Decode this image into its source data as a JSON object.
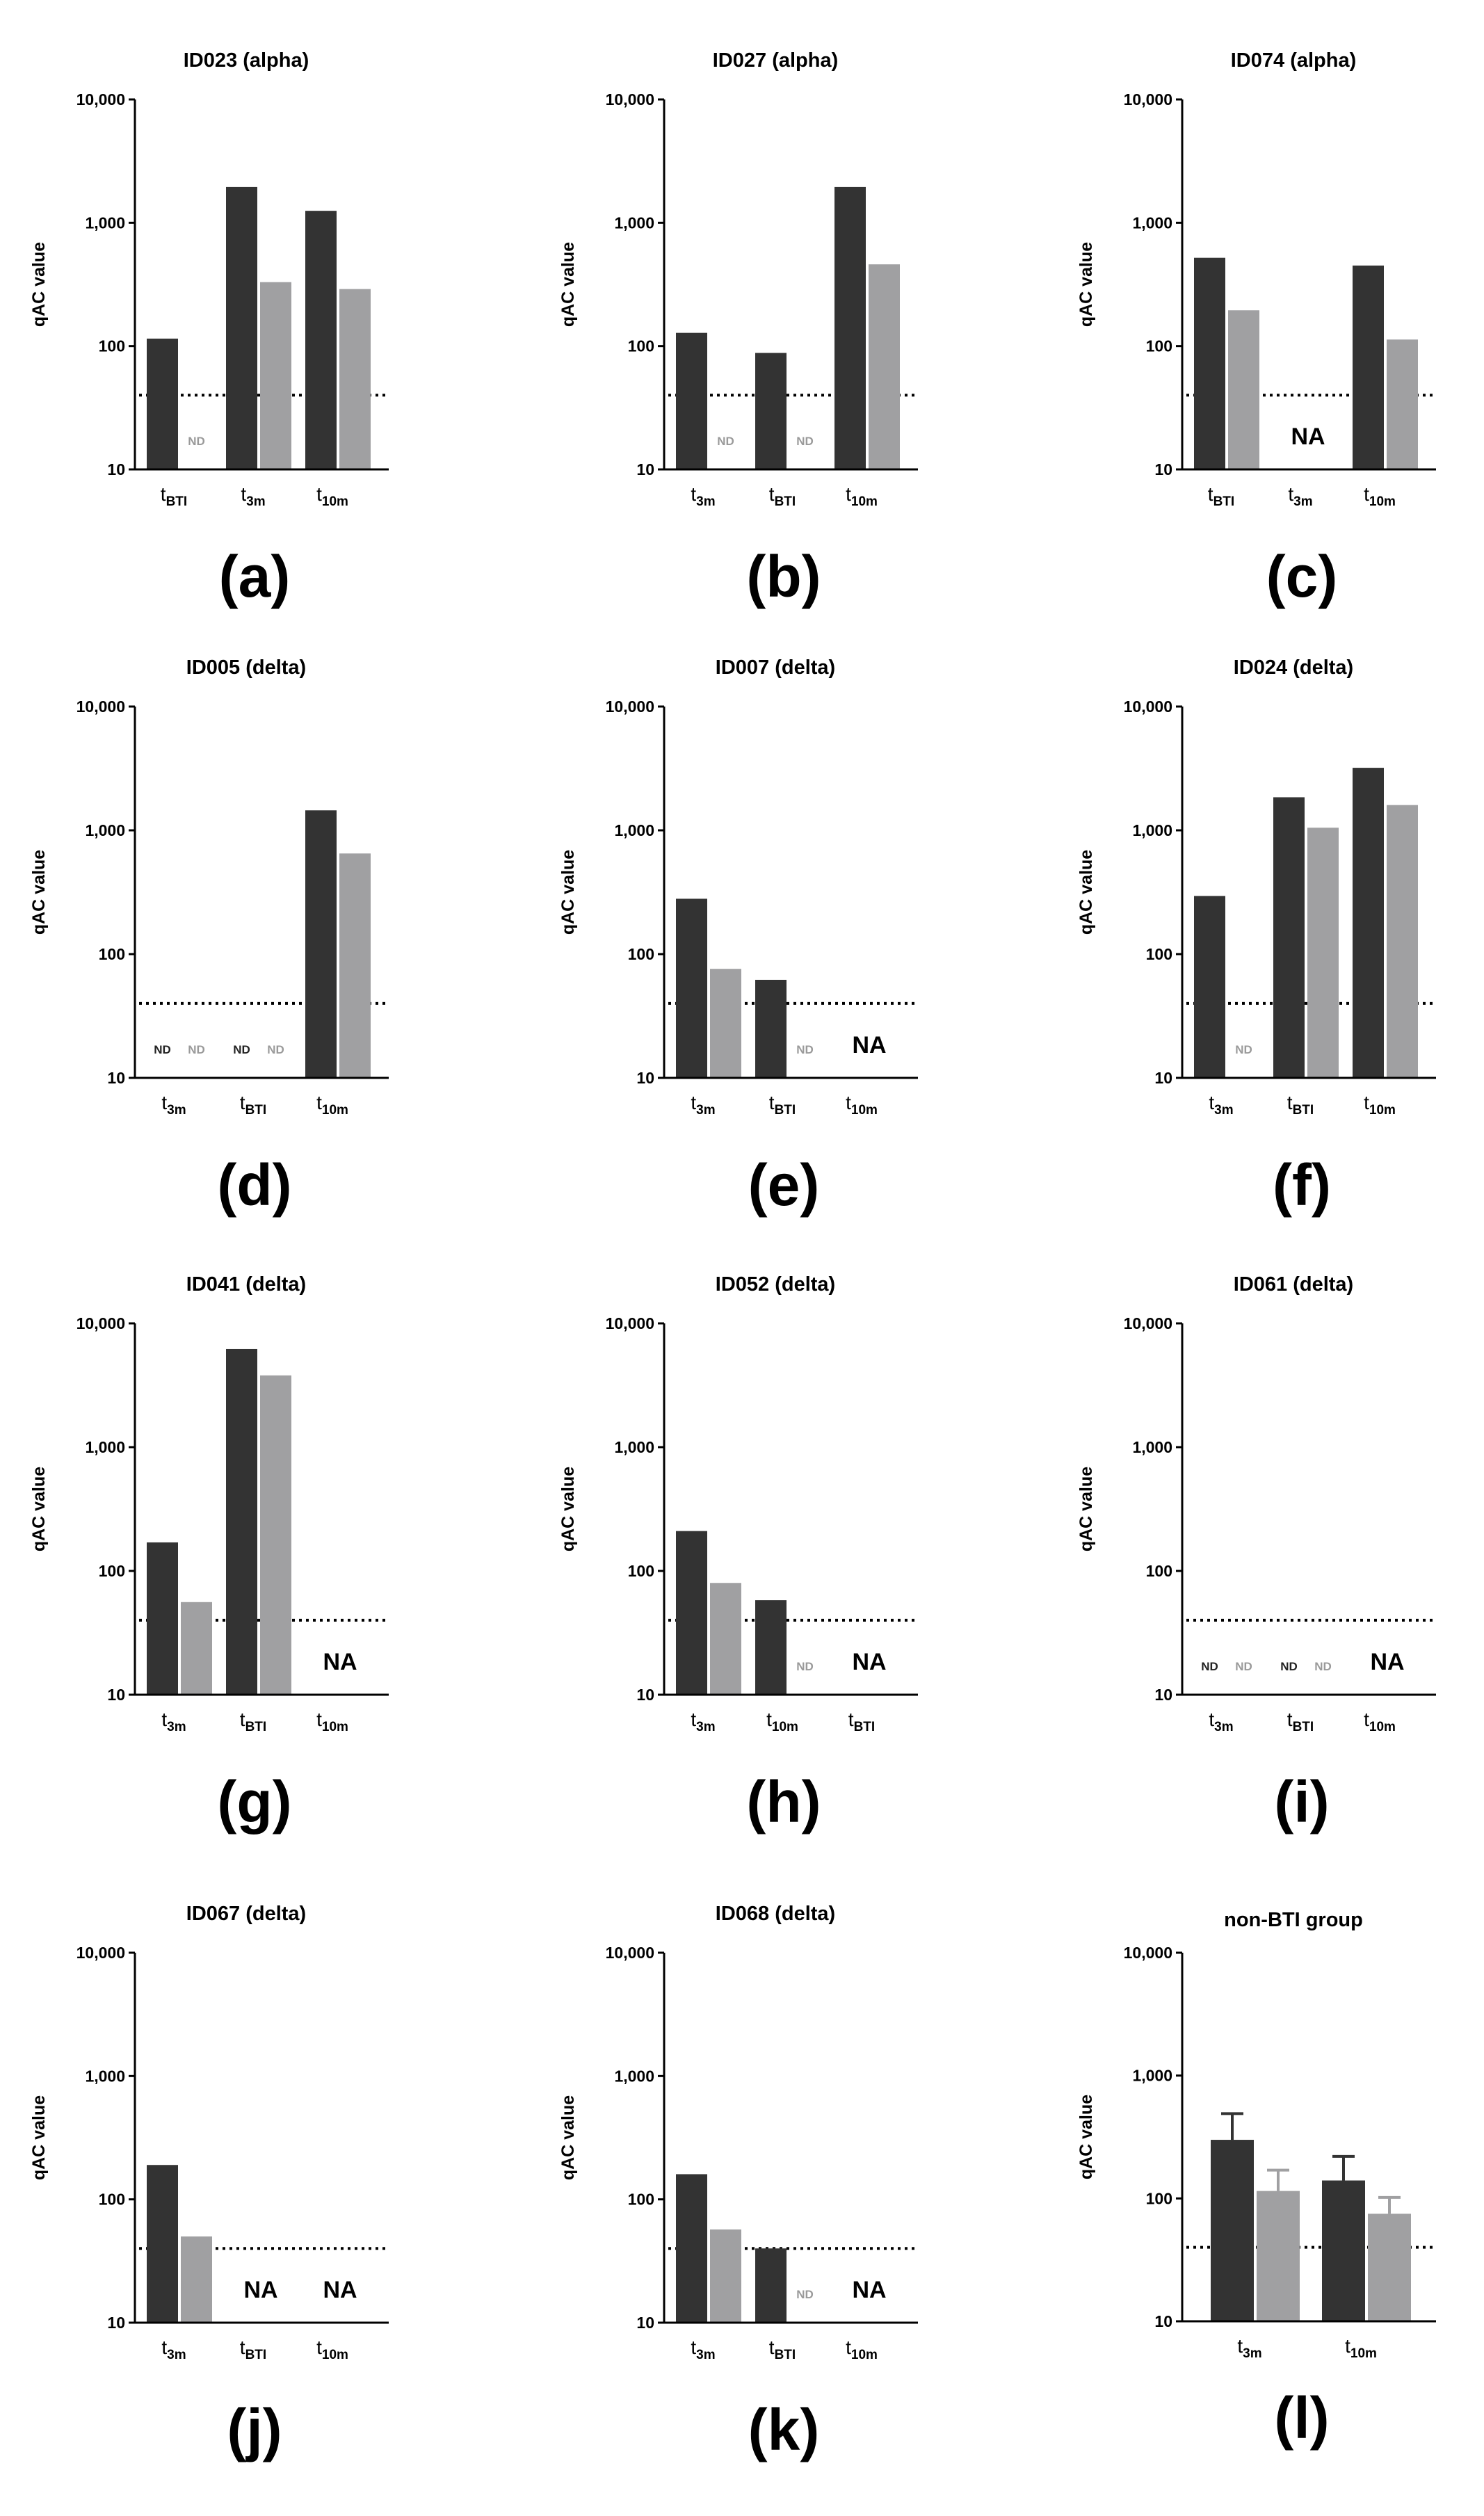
{
  "colors": {
    "dark": "#333333",
    "light": "#a0a0a2",
    "nd_dark": "#222222",
    "nd_light": "#9a9a9a",
    "axis": "#000000"
  },
  "y_axis_label": "qAC value",
  "y_ticks": [
    "10",
    "100",
    "1,000",
    "10,000"
  ],
  "nd_text": "ND",
  "chart_data": [
    {
      "id": "a",
      "type": "bar",
      "panel_label": "(a)",
      "title": "ID023 (alpha)",
      "yscale": "log",
      "ylim": [
        10,
        10000
      ],
      "threshold": 40,
      "categories": [
        {
          "base": "t",
          "sub": "BTI"
        },
        {
          "base": "t",
          "sub": "3m"
        },
        {
          "base": "t",
          "sub": "10m"
        }
      ],
      "series": [
        {
          "name": "dark",
          "values": [
            115,
            1950,
            1250
          ]
        },
        {
          "name": "light",
          "values": [
            null,
            330,
            290
          ]
        }
      ],
      "nd": [
        {
          "cat": 0,
          "series": "light"
        }
      ],
      "na": []
    },
    {
      "id": "b",
      "type": "bar",
      "panel_label": "(b)",
      "title": "ID027 (alpha)",
      "yscale": "log",
      "ylim": [
        10,
        10000
      ],
      "threshold": 40,
      "categories": [
        {
          "base": "t",
          "sub": "3m"
        },
        {
          "base": "t",
          "sub": "BTI"
        },
        {
          "base": "t",
          "sub": "10m"
        }
      ],
      "series": [
        {
          "name": "dark",
          "values": [
            128,
            88,
            1950
          ]
        },
        {
          "name": "light",
          "values": [
            null,
            null,
            460
          ]
        }
      ],
      "nd": [
        {
          "cat": 0,
          "series": "light"
        },
        {
          "cat": 1,
          "series": "light"
        }
      ],
      "na": []
    },
    {
      "id": "c",
      "type": "bar",
      "panel_label": "(c)",
      "title": "ID074 (alpha)",
      "yscale": "log",
      "ylim": [
        10,
        10000
      ],
      "threshold": 40,
      "categories": [
        {
          "base": "t",
          "sub": "BTI"
        },
        {
          "base": "t",
          "sub": "3m"
        },
        {
          "base": "t",
          "sub": "10m"
        }
      ],
      "series": [
        {
          "name": "dark",
          "values": [
            520,
            null,
            450
          ]
        },
        {
          "name": "light",
          "values": [
            195,
            null,
            113
          ]
        }
      ],
      "nd": [],
      "na": [
        {
          "cat": 1,
          "text": "NA"
        }
      ]
    },
    {
      "id": "d",
      "type": "bar",
      "panel_label": "(d)",
      "title": "ID005 (delta)",
      "yscale": "log",
      "ylim": [
        10,
        10000
      ],
      "threshold": 40,
      "categories": [
        {
          "base": "t",
          "sub": "3m"
        },
        {
          "base": "t",
          "sub": "BTI"
        },
        {
          "base": "t",
          "sub": "10m"
        }
      ],
      "series": [
        {
          "name": "dark",
          "values": [
            null,
            null,
            1450
          ]
        },
        {
          "name": "light",
          "values": [
            null,
            null,
            650
          ]
        }
      ],
      "nd": [
        {
          "cat": 0,
          "series": "dark"
        },
        {
          "cat": 0,
          "series": "light"
        },
        {
          "cat": 1,
          "series": "dark"
        },
        {
          "cat": 1,
          "series": "light"
        }
      ],
      "na": []
    },
    {
      "id": "e",
      "type": "bar",
      "panel_label": "(e)",
      "title": "ID007 (delta)",
      "yscale": "log",
      "ylim": [
        10,
        10000
      ],
      "threshold": 40,
      "categories": [
        {
          "base": "t",
          "sub": "3m"
        },
        {
          "base": "t",
          "sub": "BTI"
        },
        {
          "base": "t",
          "sub": "10m"
        }
      ],
      "series": [
        {
          "name": "dark",
          "values": [
            280,
            62,
            null
          ]
        },
        {
          "name": "light",
          "values": [
            76,
            null,
            null
          ]
        }
      ],
      "nd": [
        {
          "cat": 1,
          "series": "light"
        }
      ],
      "na": [
        {
          "cat": 2,
          "text": "NA"
        }
      ]
    },
    {
      "id": "f",
      "type": "bar",
      "panel_label": "(f)",
      "title": "ID024 (delta)",
      "yscale": "log",
      "ylim": [
        10,
        10000
      ],
      "threshold": 40,
      "categories": [
        {
          "base": "t",
          "sub": "3m"
        },
        {
          "base": "t",
          "sub": "BTI"
        },
        {
          "base": "t",
          "sub": "10m"
        }
      ],
      "series": [
        {
          "name": "dark",
          "values": [
            295,
            1850,
            3200
          ]
        },
        {
          "name": "light",
          "values": [
            null,
            1050,
            1600
          ]
        }
      ],
      "nd": [
        {
          "cat": 0,
          "series": "light"
        }
      ],
      "na": []
    },
    {
      "id": "g",
      "type": "bar",
      "panel_label": "(g)",
      "title": "ID041 (delta)",
      "yscale": "log",
      "ylim": [
        10,
        10000
      ],
      "threshold": 40,
      "categories": [
        {
          "base": "t",
          "sub": "3m"
        },
        {
          "base": "t",
          "sub": "BTI"
        },
        {
          "base": "t",
          "sub": "10m"
        }
      ],
      "series": [
        {
          "name": "dark",
          "values": [
            170,
            6200,
            null
          ]
        },
        {
          "name": "light",
          "values": [
            56,
            3800,
            null
          ]
        }
      ],
      "nd": [],
      "na": [
        {
          "cat": 2,
          "text": "NA"
        }
      ]
    },
    {
      "id": "h",
      "type": "bar",
      "panel_label": "(h)",
      "title": "ID052 (delta)",
      "yscale": "log",
      "ylim": [
        10,
        10000
      ],
      "threshold": 40,
      "categories": [
        {
          "base": "t",
          "sub": "3m"
        },
        {
          "base": "t",
          "sub": "10m"
        },
        {
          "base": "t",
          "sub": "BTI"
        }
      ],
      "series": [
        {
          "name": "dark",
          "values": [
            210,
            58,
            null
          ]
        },
        {
          "name": "light",
          "values": [
            80,
            null,
            null
          ]
        }
      ],
      "nd": [
        {
          "cat": 1,
          "series": "light"
        }
      ],
      "na": [
        {
          "cat": 2,
          "text": "NA"
        }
      ]
    },
    {
      "id": "i",
      "type": "bar",
      "panel_label": "(i)",
      "title": "ID061 (delta)",
      "yscale": "log",
      "ylim": [
        10,
        10000
      ],
      "threshold": 40,
      "categories": [
        {
          "base": "t",
          "sub": "3m"
        },
        {
          "base": "t",
          "sub": "BTI"
        },
        {
          "base": "t",
          "sub": "10m"
        }
      ],
      "series": [
        {
          "name": "dark",
          "values": [
            null,
            null,
            null
          ]
        },
        {
          "name": "light",
          "values": [
            null,
            null,
            null
          ]
        }
      ],
      "nd": [
        {
          "cat": 0,
          "series": "dark"
        },
        {
          "cat": 0,
          "series": "light"
        },
        {
          "cat": 1,
          "series": "dark"
        },
        {
          "cat": 1,
          "series": "light"
        }
      ],
      "na": [
        {
          "cat": 2,
          "text": "NA"
        }
      ]
    },
    {
      "id": "j",
      "type": "bar",
      "panel_label": "(j)",
      "title": "ID067 (delta)",
      "yscale": "log",
      "ylim": [
        10,
        10000
      ],
      "threshold": 40,
      "categories": [
        {
          "base": "t",
          "sub": "3m"
        },
        {
          "base": "t",
          "sub": "BTI"
        },
        {
          "base": "t",
          "sub": "10m"
        }
      ],
      "series": [
        {
          "name": "dark",
          "values": [
            190,
            null,
            null
          ]
        },
        {
          "name": "light",
          "values": [
            50,
            null,
            null
          ]
        }
      ],
      "nd": [],
      "na": [
        {
          "cat": 1,
          "text": "NA"
        },
        {
          "cat": 2,
          "text": "NA"
        }
      ]
    },
    {
      "id": "k",
      "type": "bar",
      "panel_label": "(k)",
      "title": "ID068 (delta)",
      "yscale": "log",
      "ylim": [
        10,
        10000
      ],
      "threshold": 40,
      "categories": [
        {
          "base": "t",
          "sub": "3m"
        },
        {
          "base": "t",
          "sub": "BTI"
        },
        {
          "base": "t",
          "sub": "10m"
        }
      ],
      "series": [
        {
          "name": "dark",
          "values": [
            160,
            40,
            null
          ]
        },
        {
          "name": "light",
          "values": [
            57,
            null,
            null
          ]
        }
      ],
      "nd": [
        {
          "cat": 1,
          "series": "light"
        }
      ],
      "na": [
        {
          "cat": 2,
          "text": "NA"
        }
      ]
    },
    {
      "id": "l",
      "type": "bar",
      "panel_label": "(l)",
      "title": "non-BTI group",
      "yscale": "log",
      "ylim": [
        10,
        10000
      ],
      "threshold": 40,
      "categories": [
        {
          "base": "t",
          "sub": "3m"
        },
        {
          "base": "t",
          "sub": "10m"
        }
      ],
      "series": [
        {
          "name": "dark",
          "values": [
            300,
            140
          ],
          "error_upper": [
            490,
            220
          ]
        },
        {
          "name": "light",
          "values": [
            115,
            75
          ],
          "error_upper": [
            170,
            102
          ]
        }
      ],
      "nd": [],
      "na": []
    }
  ]
}
